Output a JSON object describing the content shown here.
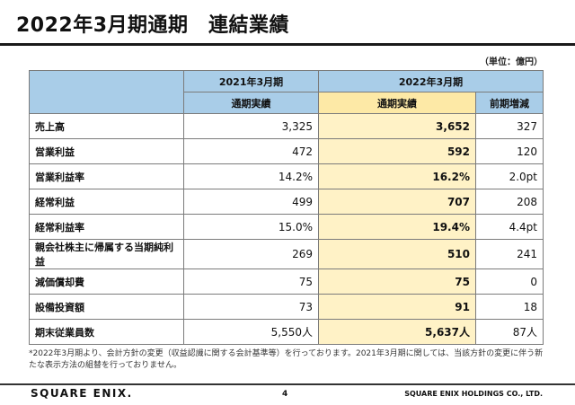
{
  "title": "2022年3月期通期　連結業績",
  "unit": "（単位：億円）",
  "table": {
    "headers": {
      "fy2021": "2021年3月期",
      "fy2022": "2022年3月期",
      "actual_2021": "通期実績",
      "actual_2022": "通期実績",
      "yoy_change": "前期増減"
    },
    "rows": [
      {
        "label": "売上高",
        "fy2021": "3,325",
        "fy2022": "3,652",
        "change": "327"
      },
      {
        "label": "営業利益",
        "fy2021": "472",
        "fy2022": "592",
        "change": "120"
      },
      {
        "label": "営業利益率",
        "fy2021": "14.2%",
        "fy2022": "16.2%",
        "change": "2.0pt"
      },
      {
        "label": "経常利益",
        "fy2021": "499",
        "fy2022": "707",
        "change": "208"
      },
      {
        "label": "経常利益率",
        "fy2021": "15.0%",
        "fy2022": "19.4%",
        "change": "4.4pt"
      },
      {
        "label": "親会社株主に帰属する当期純利益",
        "fy2021": "269",
        "fy2022": "510",
        "change": "241"
      },
      {
        "label": "減価償却費",
        "fy2021": "75",
        "fy2022": "75",
        "change": "0"
      },
      {
        "label": "設備投資額",
        "fy2021": "73",
        "fy2022": "91",
        "change": "18"
      },
      {
        "label": "期末従業員数",
        "fy2021": "5,550人",
        "fy2022": "5,637人",
        "change": "87人"
      }
    ]
  },
  "footnote": "*2022年3月期より、会計方針の変更（収益認識に関する会計基準等）を行っております。2021年3月期に関しては、当該方針の変更に伴う新たな表示方法の組替を行っておりません。",
  "footer": {
    "logo": "SQUARE ENIX.",
    "page_number": "4",
    "company": "SQUARE ENIX HOLDINGS CO., LTD."
  },
  "colors": {
    "header_blue": "#a9cde8",
    "highlight_yellow": "#fff2c6",
    "highlight_header": "#fde9a6"
  }
}
